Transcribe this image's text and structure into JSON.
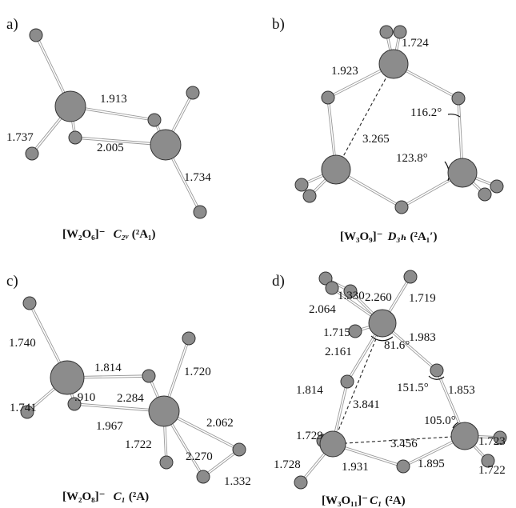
{
  "panels": {
    "a": {
      "label": "a)",
      "caption_formula": "[W₂O₆]⁻",
      "caption_sym": "C₂ᵥ",
      "caption_state": "(²A₁)",
      "bonds": [
        "1.913",
        "2.005",
        "1.737",
        "1.734"
      ]
    },
    "b": {
      "label": "b)",
      "caption_formula": "[W₃O₉]⁻",
      "caption_sym": "D₃ₕ",
      "caption_state": "(²A₁′)",
      "bonds": [
        "1.724",
        "1.923",
        "3.265"
      ],
      "angles": [
        "116.2°",
        "123.8°"
      ]
    },
    "c": {
      "label": "c)",
      "caption_formula": "[W₂O₈]⁻",
      "caption_sym": "C₁",
      "caption_state": "(²A)",
      "bonds": [
        "1.740",
        "1.814",
        "1.720",
        ".910",
        "2.284",
        "1.741",
        "1.967",
        "2.062",
        "1.722",
        "2.270",
        "1.332"
      ]
    },
    "d": {
      "label": "d)",
      "caption_formula": "[W₃O₁₁]⁻",
      "caption_sym": "C₁",
      "caption_state": "(²A)",
      "bonds": [
        "1.330",
        "2.260",
        "1.719",
        "2.064",
        "1.715",
        "1.983",
        "2.161",
        "1.814",
        "1.853",
        "3.841",
        "1.729",
        "3.456",
        "1.723",
        "1.728",
        "1.931",
        "1.895",
        "1.722"
      ],
      "angles": [
        "81.6°",
        "151.5°",
        "105.0°"
      ]
    }
  }
}
